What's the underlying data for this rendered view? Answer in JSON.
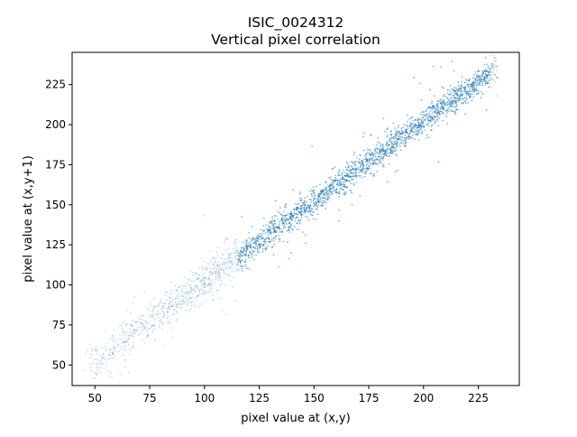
{
  "chart_data": {
    "type": "scatter",
    "title": [
      "ISIC_0024312",
      "Vertical pixel correlation"
    ],
    "xlabel": "pixel value at (x,y)",
    "ylabel": "pixel value at (x,y+1)",
    "xlim": [
      39.6,
      243.7
    ],
    "ylim": [
      37.2,
      245.1
    ],
    "xticks": [
      50,
      75,
      100,
      125,
      150,
      175,
      200,
      225
    ],
    "yticks": [
      50,
      75,
      100,
      125,
      150,
      175,
      200,
      225
    ],
    "grid": false,
    "series": [
      {
        "color": "#1f77b4",
        "range": [
          45,
          234
        ],
        "approx_points": [
          [
            47,
            50
          ],
          [
            52,
            55
          ],
          [
            55,
            60
          ],
          [
            60,
            64
          ],
          [
            65,
            70
          ],
          [
            70,
            72
          ],
          [
            75,
            78
          ],
          [
            80,
            83
          ],
          [
            85,
            88
          ],
          [
            90,
            93
          ],
          [
            95,
            98
          ],
          [
            100,
            103
          ],
          [
            105,
            108
          ],
          [
            110,
            113
          ],
          [
            115,
            117
          ],
          [
            120,
            122
          ],
          [
            125,
            127
          ],
          [
            130,
            132
          ],
          [
            135,
            137
          ],
          [
            140,
            142
          ],
          [
            145,
            147
          ],
          [
            150,
            152
          ],
          [
            155,
            157
          ],
          [
            160,
            162
          ],
          [
            165,
            167
          ],
          [
            170,
            172
          ],
          [
            175,
            177
          ],
          [
            180,
            182
          ],
          [
            185,
            187
          ],
          [
            190,
            192
          ],
          [
            195,
            197
          ],
          [
            200,
            202
          ],
          [
            205,
            207
          ],
          [
            210,
            212
          ],
          [
            215,
            217
          ],
          [
            220,
            222
          ],
          [
            225,
            227
          ],
          [
            230,
            232
          ],
          [
            233,
            234
          ]
        ]
      }
    ]
  }
}
